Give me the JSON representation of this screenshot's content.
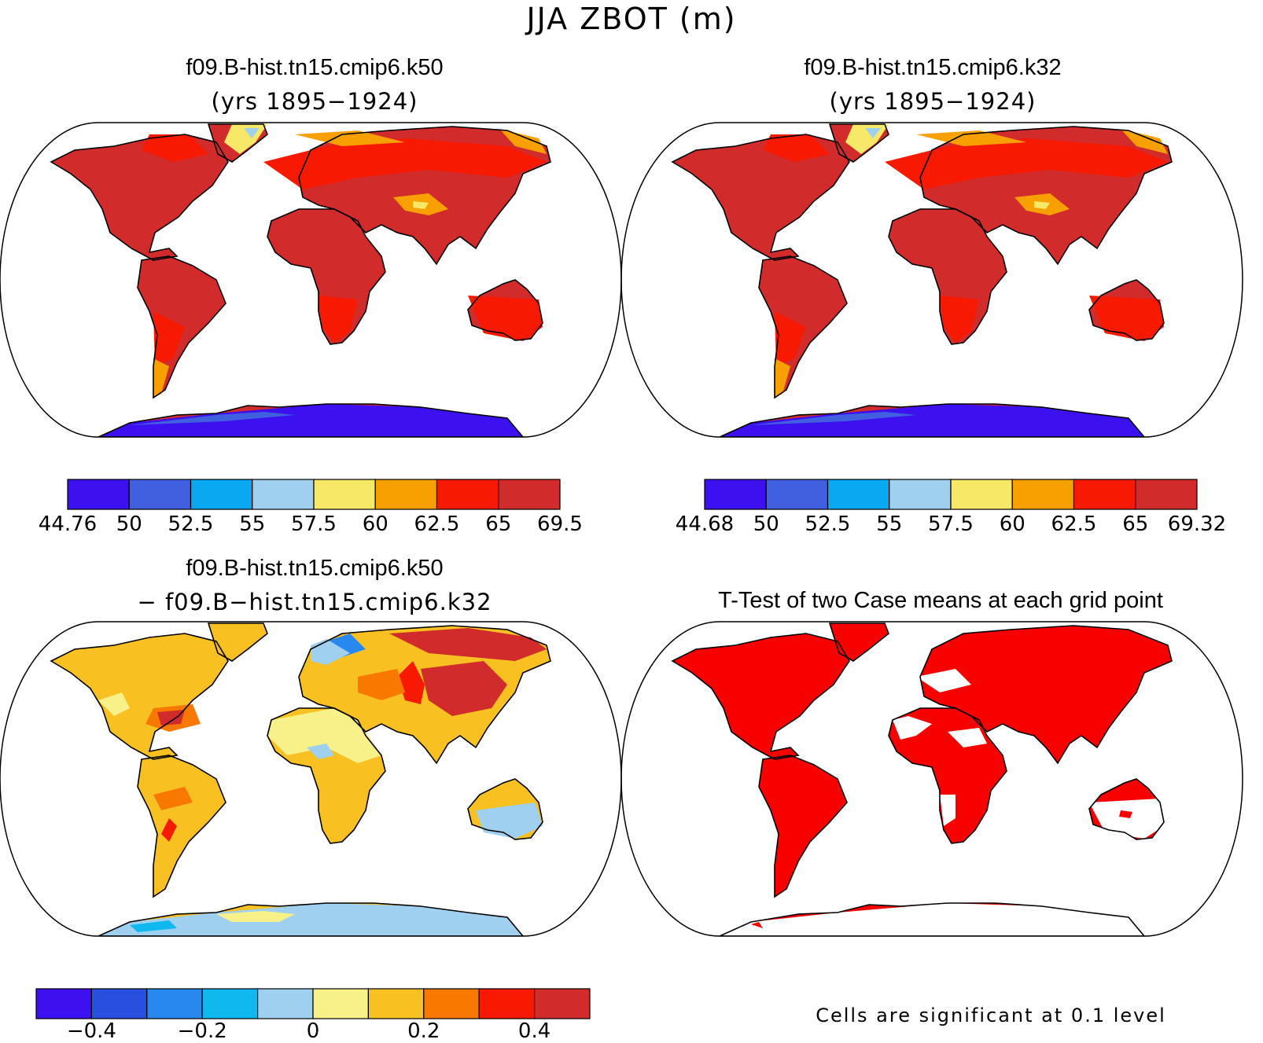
{
  "figure": {
    "title": "JJA ZBOT (m)"
  },
  "panels": {
    "case1": {
      "name": "f09.B-hist.tn15.cmip6.k50",
      "years": "(yrs 1895−1924)",
      "colorbar": {
        "colors": [
          "#3d10f0",
          "#4060e0",
          "#0aa8f0",
          "#a0d0f0",
          "#f8e868",
          "#f8a000",
          "#f81a00",
          "#d22b2b"
        ],
        "labels": [
          "44.76",
          "50",
          "52.5",
          "55",
          "57.5",
          "60",
          "62.5",
          "65",
          "69.5"
        ]
      }
    },
    "case2": {
      "name": "f09.B-hist.tn15.cmip6.k32",
      "years": "(yrs 1895−1924)",
      "colorbar": {
        "colors": [
          "#3d10f0",
          "#4060e0",
          "#0aa8f0",
          "#a0d0f0",
          "#f8e868",
          "#f8a000",
          "#f81a00",
          "#d22b2b"
        ],
        "labels": [
          "44.68",
          "50",
          "52.5",
          "55",
          "57.5",
          "60",
          "62.5",
          "65",
          "69.32"
        ]
      }
    },
    "difference": {
      "line1": "f09.B-hist.tn15.cmip6.k50",
      "line2": "− f09.B−hist.tn15.cmip6.k32",
      "colorbar": {
        "colors": [
          "#3d10f0",
          "#2850e0",
          "#2888f0",
          "#10b8f0",
          "#a0d0f0",
          "#f8f088",
          "#f8c020",
          "#f87800",
          "#f81a00",
          "#d22b2b"
        ],
        "labels": [
          "−0.4",
          "−0.2",
          "0",
          "0.2",
          "0.4"
        ]
      }
    },
    "ttest": {
      "title": "T-Test of two Case means at each grid point",
      "note": "Cells are significant at 0.1 level",
      "color": "#f80000"
    }
  }
}
